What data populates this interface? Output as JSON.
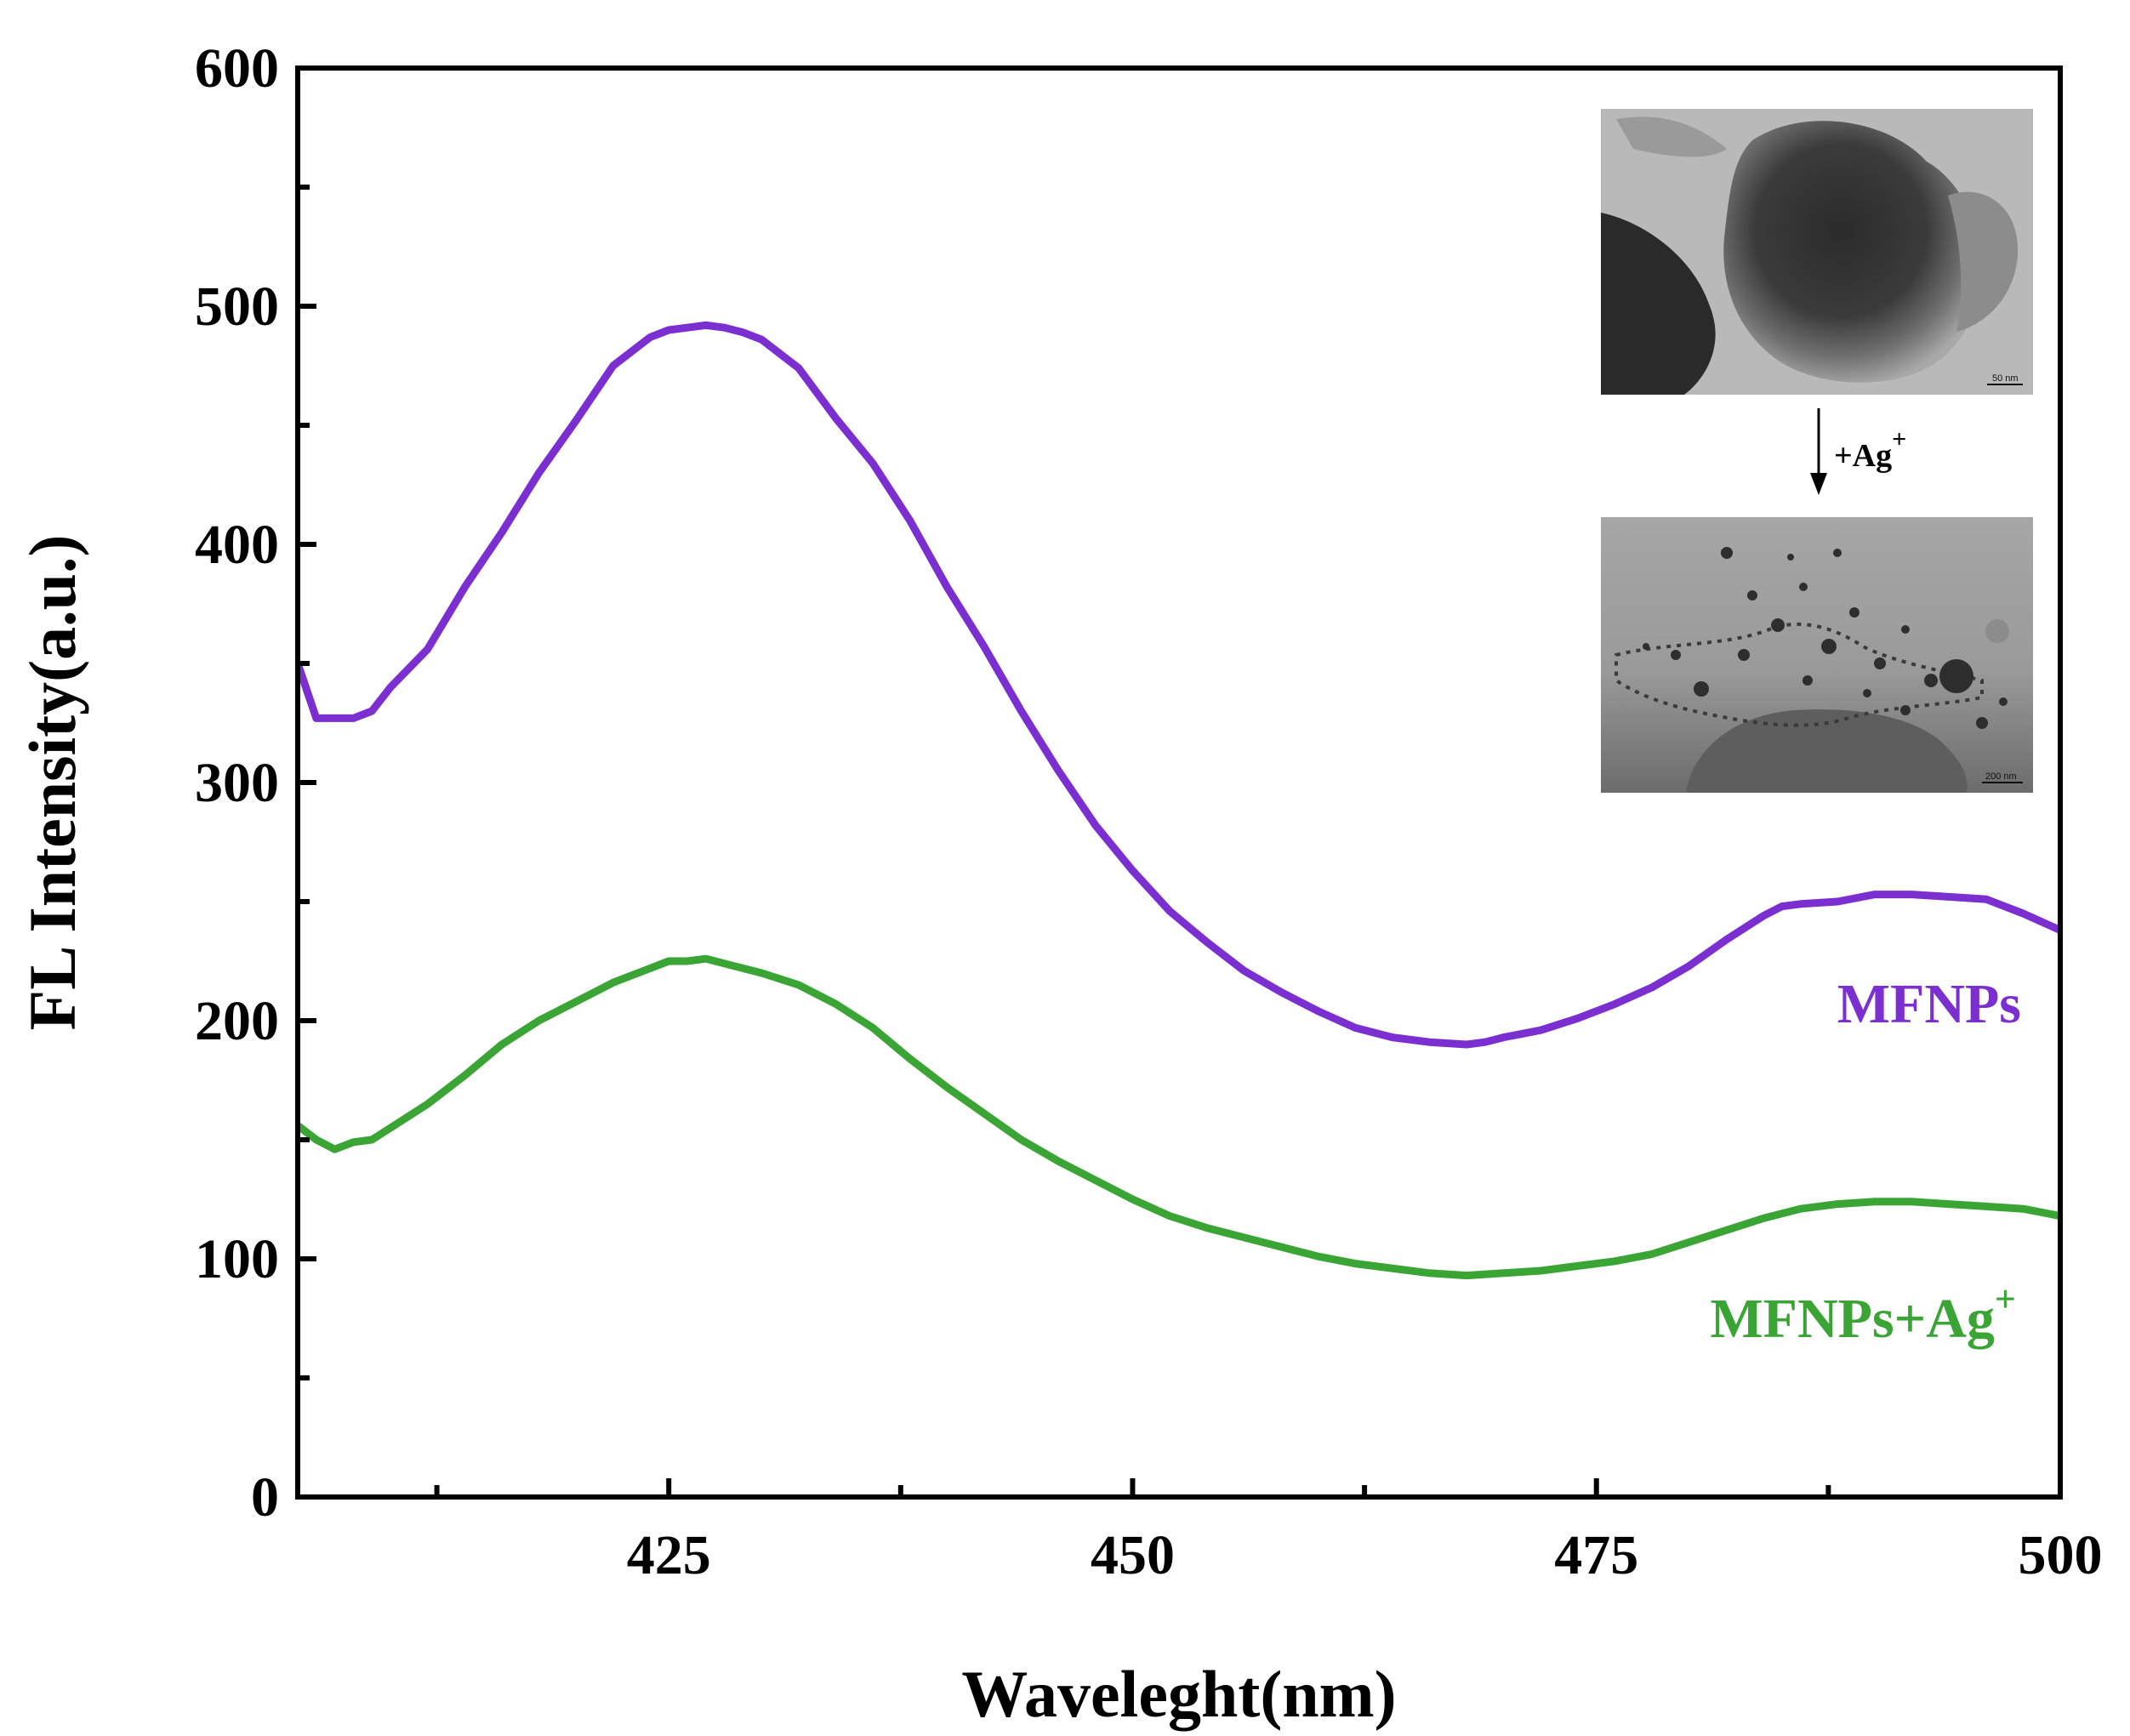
{
  "chart_data": {
    "type": "line",
    "xlabel": "Waveleght(nm)",
    "ylabel": "FL Intensity(a.u.)",
    "xlim": [
      405,
      500
    ],
    "ylim": [
      0,
      600
    ],
    "x_ticks": [
      425,
      450,
      475,
      500
    ],
    "y_ticks": [
      0,
      100,
      200,
      300,
      400,
      500,
      600
    ],
    "grid": false,
    "series": [
      {
        "name": "MFNPs",
        "color": "#7b2fd0",
        "x": [
          405,
          406,
          408,
          409,
          410,
          412,
          414,
          416,
          418,
          420,
          422,
          424,
          425,
          426,
          427,
          428,
          429,
          430,
          432,
          434,
          436,
          438,
          440,
          442,
          444,
          446,
          448,
          450,
          452,
          454,
          456,
          458,
          460,
          462,
          464,
          466,
          468,
          469,
          470,
          472,
          474,
          476,
          478,
          480,
          482,
          484,
          485,
          486,
          488,
          490,
          492,
          494,
          496,
          498,
          500
        ],
        "values": [
          350,
          327,
          327,
          330,
          340,
          356,
          382,
          405,
          430,
          452,
          475,
          487,
          490,
          491,
          492,
          491,
          489,
          486,
          474,
          453,
          434,
          410,
          382,
          357,
          330,
          305,
          282,
          263,
          246,
          233,
          221,
          212,
          204,
          197,
          193,
          191,
          190,
          191,
          193,
          196,
          201,
          207,
          214,
          223,
          234,
          244,
          248,
          249,
          250,
          253,
          253,
          252,
          251,
          245,
          238
        ]
      },
      {
        "name": "MFNPs+Ag+",
        "color": "#3aa535",
        "x": [
          405,
          406,
          407,
          408,
          409,
          410,
          412,
          414,
          416,
          418,
          420,
          422,
          424,
          425,
          426,
          427,
          428,
          430,
          432,
          434,
          436,
          438,
          440,
          442,
          444,
          446,
          448,
          450,
          452,
          454,
          456,
          458,
          460,
          462,
          464,
          466,
          468,
          470,
          472,
          474,
          476,
          478,
          480,
          482,
          484,
          486,
          488,
          490,
          492,
          494,
          496,
          498,
          500
        ],
        "values": [
          156,
          150,
          146,
          149,
          150,
          155,
          165,
          177,
          190,
          200,
          208,
          216,
          222,
          225,
          225,
          226,
          224,
          220,
          215,
          207,
          197,
          184,
          172,
          161,
          150,
          141,
          133,
          125,
          118,
          113,
          109,
          105,
          101,
          98,
          96,
          94,
          93,
          94,
          95,
          97,
          99,
          102,
          107,
          112,
          117,
          121,
          123,
          124,
          124,
          123,
          122,
          121,
          118
        ]
      }
    ],
    "labels": {
      "mfnps": "MFNPs",
      "mfnps_ag_base": "MFNPs+Ag",
      "mfnps_ag_sup": "+"
    },
    "inset": {
      "arrow_label": "+Ag",
      "arrow_label_sup": "+",
      "scale_top": "50 nm",
      "scale_bottom": "200 nm"
    }
  }
}
